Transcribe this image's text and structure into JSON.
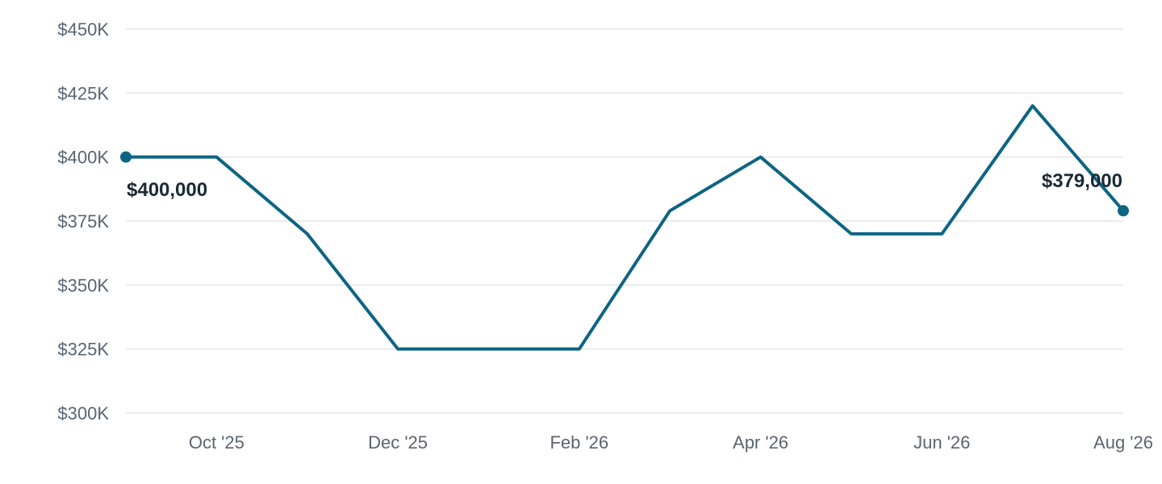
{
  "colors": {
    "series": "#0e6483",
    "grid": "#e3e6ea",
    "tick_text": "#5b6470",
    "label_text": "#1b2a36"
  },
  "chart_data": {
    "type": "line",
    "title": "",
    "xlabel": "",
    "ylabel": "",
    "ylim": [
      300000,
      450000
    ],
    "yticks": [
      300000,
      325000,
      350000,
      375000,
      400000,
      425000,
      450000
    ],
    "ytick_labels": [
      "$300K",
      "$325K",
      "$350K",
      "$375K",
      "$400K",
      "$425K",
      "$450K"
    ],
    "x": [
      "Sep '25",
      "Oct '25",
      "Nov '25",
      "Dec '25",
      "Jan '26",
      "Feb '26",
      "Mar '26",
      "Apr '26",
      "May '26",
      "Jun '26",
      "Jul '26",
      "Aug '26"
    ],
    "xtick_labels": [
      "",
      "Oct '25",
      "",
      "Dec '25",
      "",
      "Feb '26",
      "",
      "Apr '26",
      "",
      "Jun '26",
      "",
      "Aug '26"
    ],
    "series": [
      {
        "values": [
          400000,
          400000,
          370000,
          325000,
          325000,
          325000,
          379000,
          400000,
          370000,
          370000,
          420000,
          379000
        ]
      }
    ],
    "annotations": {
      "start_label": "$400,000",
      "end_label": "$379,000"
    },
    "grid": true,
    "legend": "none"
  }
}
